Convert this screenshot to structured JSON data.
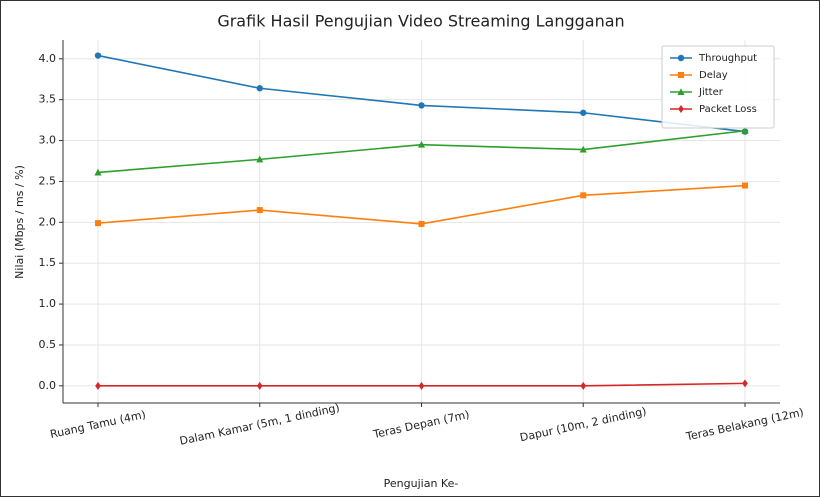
{
  "chart_data": {
    "type": "line",
    "title": "Grafik Hasil Pengujian Video Streaming Langganan",
    "xlabel": "Pengujian Ke-",
    "ylabel": "Nilai (Mbps / ms / %)",
    "categories": [
      "Ruang Tamu (4m)",
      "Dalam Kamar (5m, 1 dinding)",
      "Teras Depan (7m)",
      "Dapur (10m, 2 dinding)",
      "Teras Belakang (12m)"
    ],
    "series": [
      {
        "name": "Throughput",
        "color": "#1f77b4",
        "marker": "circle",
        "values": [
          4.04,
          3.64,
          3.43,
          3.34,
          3.11
        ]
      },
      {
        "name": "Delay",
        "color": "#ff7f0e",
        "marker": "square",
        "values": [
          1.99,
          2.15,
          1.98,
          2.33,
          2.45
        ]
      },
      {
        "name": "Jitter",
        "color": "#2ca02c",
        "marker": "triangle",
        "values": [
          2.61,
          2.77,
          2.95,
          2.89,
          3.12
        ]
      },
      {
        "name": "Packet Loss",
        "color": "#d62728",
        "marker": "diamond",
        "values": [
          0,
          0,
          0,
          0,
          0.03
        ]
      }
    ],
    "ylim": [
      -0.21,
      4.23
    ],
    "yticks": [
      {
        "value": 0,
        "label": "0.0"
      },
      0.5,
      {
        "value": 1,
        "label": "1.0"
      },
      1.5,
      {
        "value": 2,
        "label": "2.0"
      },
      2.5,
      {
        "value": 3,
        "label": "3.0"
      },
      3.5,
      {
        "value": 4,
        "label": "4.0"
      }
    ],
    "grid": true,
    "legend": "upper right"
  }
}
